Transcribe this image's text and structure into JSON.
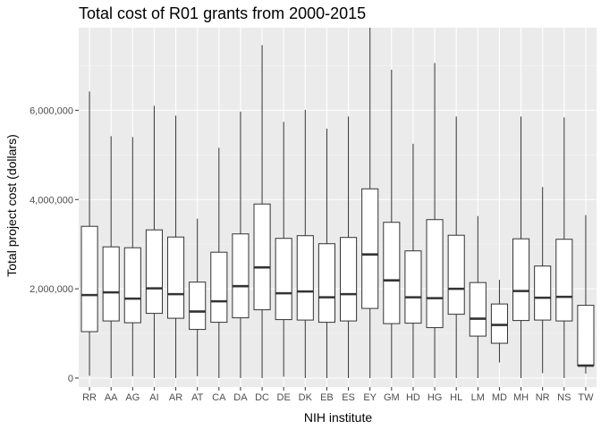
{
  "chart_data": {
    "type": "box",
    "title": "Total cost of R01 grants from 2000-2015",
    "xlabel": "NIH institute",
    "ylabel": "Total project cost (dollars)",
    "ylim": [
      -200000,
      7850000
    ],
    "yticks": [
      0,
      2000000,
      4000000,
      6000000
    ],
    "ytick_labels": [
      "0",
      "2,000,000",
      "4,000,000",
      "6,000,000"
    ],
    "grid": true,
    "legend": "none",
    "categories": [
      "RR",
      "AA",
      "AG",
      "AI",
      "AR",
      "AT",
      "CA",
      "DA",
      "DC",
      "DE",
      "DK",
      "EB",
      "ES",
      "EY",
      "GM",
      "HD",
      "HG",
      "HL",
      "LM",
      "MD",
      "MH",
      "NR",
      "NS",
      "TW"
    ],
    "boxes": [
      {
        "min": 50000,
        "q1": 1040000,
        "median": 1860000,
        "q3": 3400000,
        "max": 6420000
      },
      {
        "min": 0,
        "q1": 1280000,
        "median": 1920000,
        "q3": 2940000,
        "max": 5420000
      },
      {
        "min": 40000,
        "q1": 1240000,
        "median": 1780000,
        "q3": 2920000,
        "max": 5400000
      },
      {
        "min": 0,
        "q1": 1450000,
        "median": 2010000,
        "q3": 3320000,
        "max": 6100000
      },
      {
        "min": 0,
        "q1": 1340000,
        "median": 1880000,
        "q3": 3160000,
        "max": 5880000
      },
      {
        "min": 40000,
        "q1": 1090000,
        "median": 1490000,
        "q3": 2150000,
        "max": 3570000
      },
      {
        "min": 0,
        "q1": 1250000,
        "median": 1720000,
        "q3": 2820000,
        "max": 5160000
      },
      {
        "min": 0,
        "q1": 1350000,
        "median": 2060000,
        "q3": 3230000,
        "max": 5970000
      },
      {
        "min": 0,
        "q1": 1530000,
        "median": 2480000,
        "q3": 3900000,
        "max": 7460000
      },
      {
        "min": 30000,
        "q1": 1310000,
        "median": 1900000,
        "q3": 3130000,
        "max": 5740000
      },
      {
        "min": 0,
        "q1": 1300000,
        "median": 1940000,
        "q3": 3190000,
        "max": 6010000
      },
      {
        "min": 0,
        "q1": 1250000,
        "median": 1810000,
        "q3": 3010000,
        "max": 5590000
      },
      {
        "min": 0,
        "q1": 1280000,
        "median": 1880000,
        "q3": 3150000,
        "max": 5860000
      },
      {
        "min": 0,
        "q1": 1560000,
        "median": 2770000,
        "q3": 4240000,
        "max": 7850000
      },
      {
        "min": 0,
        "q1": 1220000,
        "median": 2190000,
        "q3": 3490000,
        "max": 6910000
      },
      {
        "min": 0,
        "q1": 1230000,
        "median": 1810000,
        "q3": 2850000,
        "max": 5250000
      },
      {
        "min": 0,
        "q1": 1130000,
        "median": 1790000,
        "q3": 3550000,
        "max": 7060000
      },
      {
        "min": 0,
        "q1": 1430000,
        "median": 2000000,
        "q3": 3200000,
        "max": 5860000
      },
      {
        "min": 0,
        "q1": 940000,
        "median": 1330000,
        "q3": 2140000,
        "max": 3630000
      },
      {
        "min": 350000,
        "q1": 780000,
        "median": 1190000,
        "q3": 1660000,
        "max": 2200000
      },
      {
        "min": 0,
        "q1": 1290000,
        "median": 1950000,
        "q3": 3120000,
        "max": 5860000
      },
      {
        "min": 110000,
        "q1": 1300000,
        "median": 1800000,
        "q3": 2510000,
        "max": 4280000
      },
      {
        "min": 0,
        "q1": 1280000,
        "median": 1820000,
        "q3": 3110000,
        "max": 5840000
      },
      {
        "min": 100000,
        "q1": 280000,
        "median": 280000,
        "q3": 1630000,
        "max": 3650000
      }
    ]
  },
  "colors": {
    "panel_bg": "#ebebeb",
    "grid_major": "#ffffff",
    "grid_minor": "#f5f5f5",
    "box_fill": "#ffffff",
    "box_stroke": "#333333",
    "tick_text": "#4d4d4d",
    "tick_mark": "#333333",
    "text": "#000000"
  }
}
